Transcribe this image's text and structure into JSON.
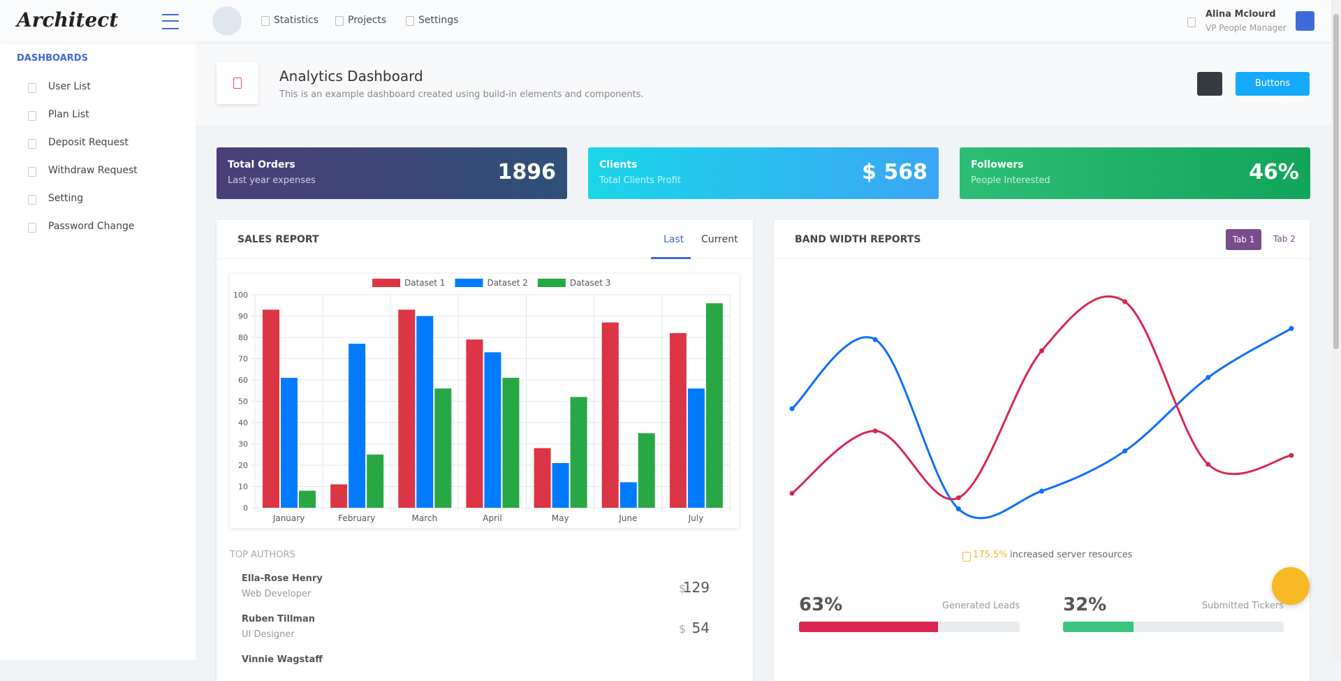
{
  "header": {
    "logo": "Architect",
    "nav": [
      "Statistics",
      "Projects",
      "Settings"
    ],
    "user_name": "Alina Mclourd",
    "user_role": "VP People Manager"
  },
  "sidebar": {
    "heading": "DASHBOARDS",
    "items": [
      "User List",
      "Plan List",
      "Deposit Request",
      "Withdraw Request",
      "Setting",
      "Password Change"
    ]
  },
  "page_title": {
    "title": "Analytics Dashboard",
    "subtitle": "This is an example dashboard created using build-in elements and components.",
    "button": "Buttons"
  },
  "stats": [
    {
      "title": "Total Orders",
      "subtitle": "Last year expenses",
      "value": "1896"
    },
    {
      "title": "Clients",
      "subtitle": "Total Clients Profit",
      "value": "$ 568"
    },
    {
      "title": "Followers",
      "subtitle": "People Interested",
      "value": "46%"
    }
  ],
  "sales_report": {
    "title": "SALES REPORT",
    "tabs": [
      "Last",
      "Current"
    ],
    "chart": {
      "type": "bar",
      "categories": [
        "January",
        "February",
        "March",
        "April",
        "May",
        "June",
        "July"
      ],
      "series": [
        {
          "name": "Dataset 1",
          "color": "#dc3545",
          "values": [
            93,
            11,
            93,
            79,
            28,
            87,
            82
          ]
        },
        {
          "name": "Dataset 2",
          "color": "#007bff",
          "values": [
            61,
            77,
            90,
            73,
            21,
            12,
            56
          ]
        },
        {
          "name": "Dataset 3",
          "color": "#28a745",
          "values": [
            8,
            25,
            56,
            61,
            52,
            35,
            96
          ]
        }
      ],
      "ylim": [
        0,
        100
      ],
      "yticks": [
        0,
        10,
        20,
        30,
        40,
        50,
        60,
        70,
        80,
        90,
        100
      ],
      "grid": true,
      "legend": "top"
    },
    "authors_heading": "TOP AUTHORS",
    "authors": [
      {
        "name": "Ella-Rose Henry",
        "role": "Web Developer",
        "currency": "$",
        "amount": "129"
      },
      {
        "name": "Ruben Tillman",
        "role": "UI Designer",
        "currency": "$",
        "amount": "54"
      },
      {
        "name": "Vinnie Wagstaff",
        "role": "",
        "currency": "",
        "amount": ""
      }
    ]
  },
  "bandwidth": {
    "title": "BAND WIDTH REPORTS",
    "tabs": [
      "Tab 1",
      "Tab 2"
    ],
    "chart": {
      "type": "line",
      "ylim": [
        0,
        100
      ],
      "series": [
        {
          "color": "#0d6efd",
          "values": [
            47,
            78,
            2,
            10,
            28,
            61,
            83
          ]
        },
        {
          "color": "#d92550",
          "values": [
            9,
            37,
            7,
            73,
            95,
            22,
            26
          ]
        }
      ]
    },
    "stat_value": "175.5%",
    "stat_text": "increased server resources",
    "progress": [
      {
        "percent": {
          "value": 63,
          "label": "63%"
        },
        "label": "Generated Leads",
        "color": "#d92550"
      },
      {
        "percent": {
          "value": 32,
          "label": "32%"
        },
        "label": "Submitted Tickers",
        "color": "#3ac47d"
      }
    ]
  }
}
